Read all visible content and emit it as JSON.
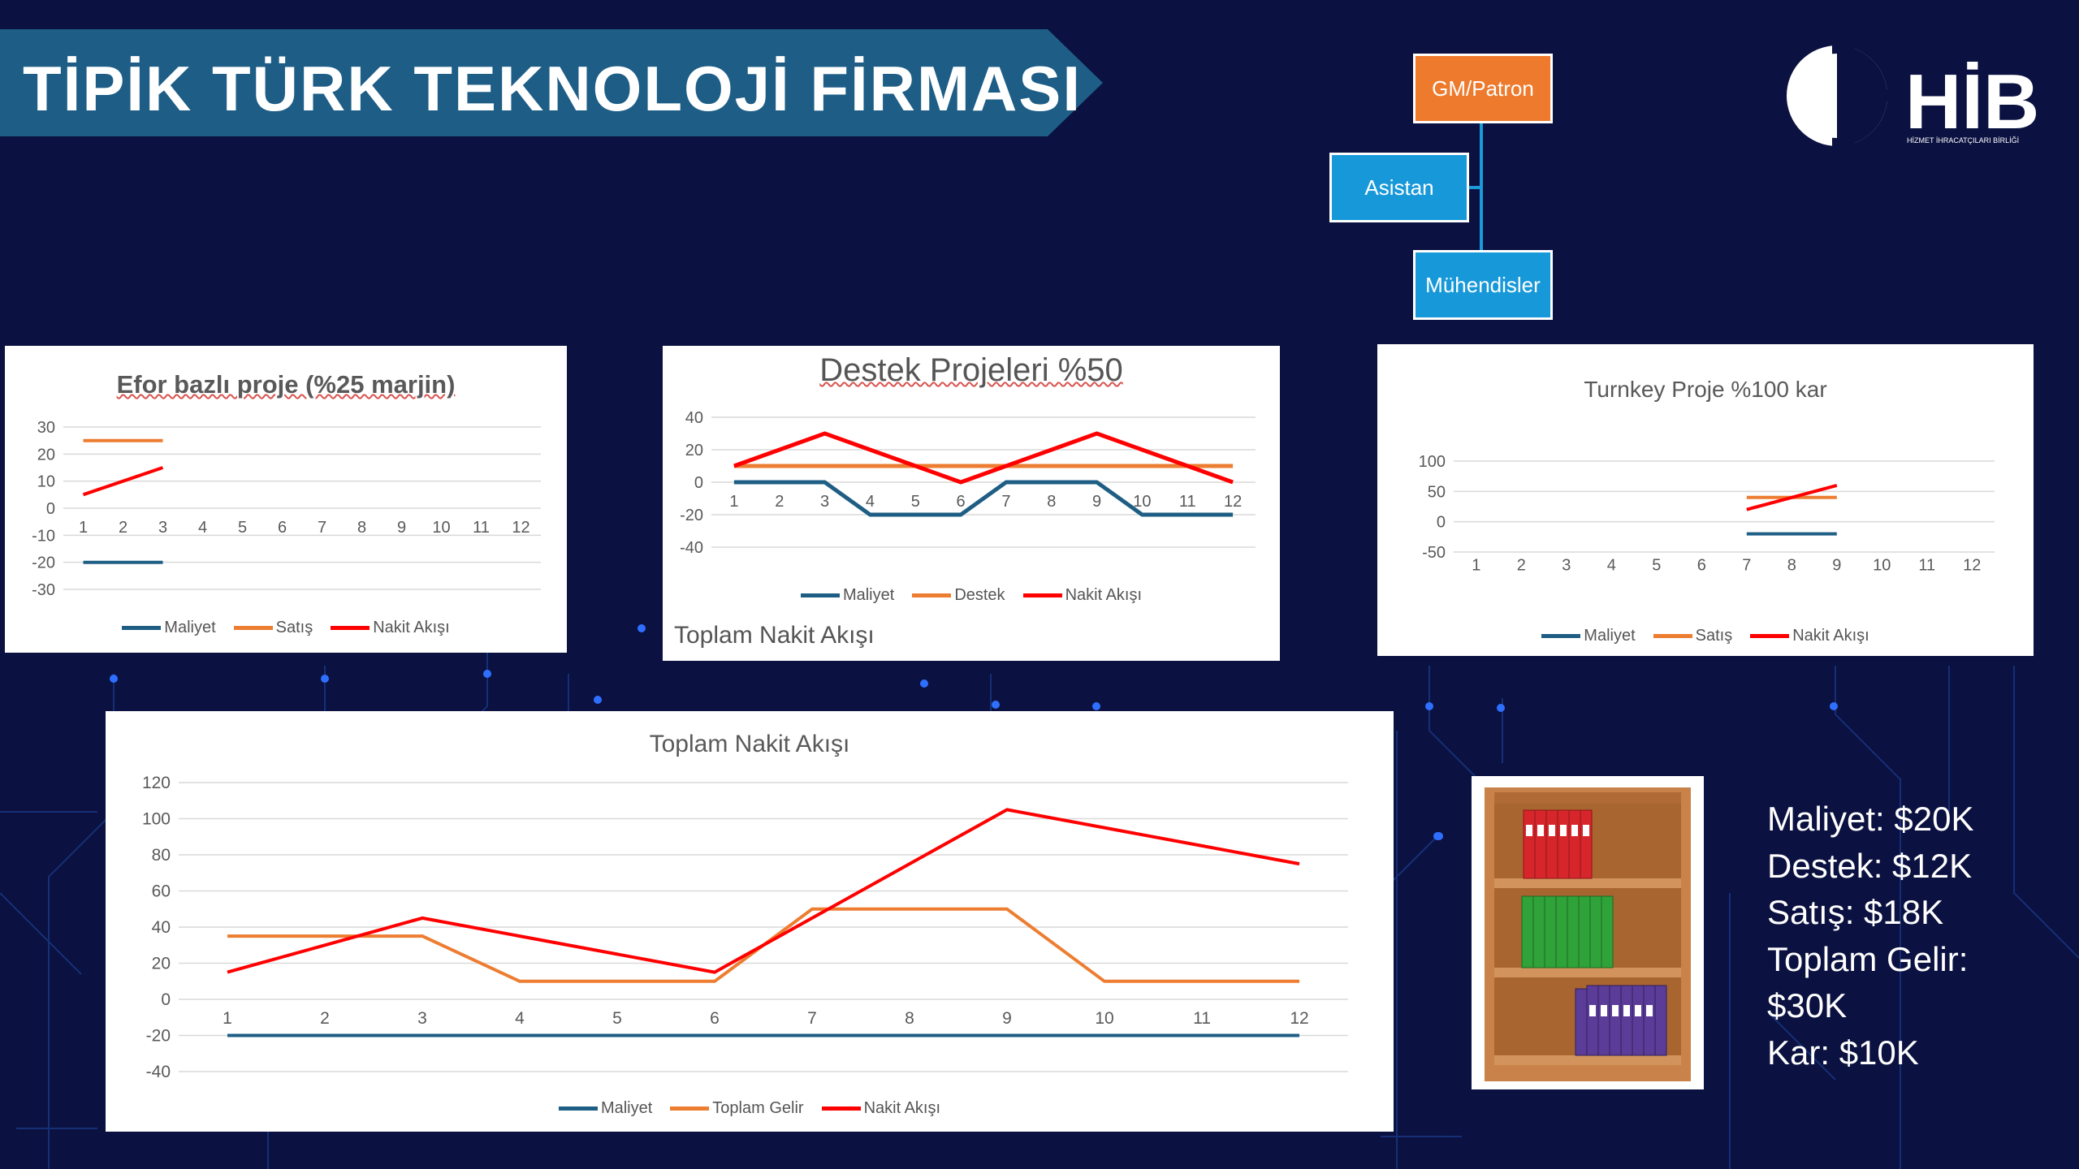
{
  "slide": {
    "title": "TİPİK TÜRK TEKNOLOJİ FİRMASI",
    "colors": {
      "background": "#0b1140",
      "banner": "#1d5d86",
      "org_orange": "#ee7a2d",
      "org_blue": "#1798d8"
    }
  },
  "org_chart": {
    "top": "GM/Patron",
    "assistant": "Asistan",
    "staff": "Mühendisler"
  },
  "logo": {
    "text": "HİB",
    "subtext": "HİZMET İHRACATÇILARI BİRLİĞİ"
  },
  "facts": {
    "lines": [
      "Maliyet: $20K",
      "Destek: $12K",
      "Satış: $18K",
      "Toplam Gelir:",
      "$30K",
      "Kar: $10K"
    ]
  },
  "image": {
    "icon": "bookshelf-with-binders-icon"
  },
  "chart_data": [
    {
      "type": "line",
      "title": "Efor bazlı proje (%25 marjin)",
      "categories": [
        "1",
        "2",
        "3",
        "4",
        "5",
        "6",
        "7",
        "8",
        "9",
        "10",
        "11",
        "12"
      ],
      "ylim": [
        -30,
        30
      ],
      "yticks": [
        30,
        20,
        10,
        0,
        -10,
        -20,
        -30
      ],
      "series": [
        {
          "name": "Maliyet",
          "color": "#1f5e84",
          "values": [
            -20,
            -20,
            -20,
            null,
            null,
            null,
            null,
            null,
            null,
            null,
            null,
            null
          ]
        },
        {
          "name": "Satış",
          "color": "#ed7d31",
          "values": [
            25,
            25,
            25,
            null,
            null,
            null,
            null,
            null,
            null,
            null,
            null,
            null
          ]
        },
        {
          "name": "Nakit Akışı",
          "color": "#ff0000",
          "values": [
            5,
            10,
            15,
            null,
            null,
            null,
            null,
            null,
            null,
            null,
            null,
            null
          ]
        }
      ]
    },
    {
      "type": "line",
      "title": "Destek Projeleri %50",
      "caption": "Toplam Nakit Akışı",
      "categories": [
        "1",
        "2",
        "3",
        "4",
        "5",
        "6",
        "7",
        "8",
        "9",
        "10",
        "11",
        "12"
      ],
      "ylim": [
        -40,
        40
      ],
      "yticks": [
        40,
        20,
        0,
        -20,
        -40
      ],
      "series": [
        {
          "name": "Maliyet",
          "color": "#1f5e84",
          "values": [
            0,
            0,
            0,
            -20,
            -20,
            -20,
            0,
            0,
            0,
            -20,
            -20,
            -20
          ]
        },
        {
          "name": "Destek",
          "color": "#ed7d31",
          "values": [
            10,
            10,
            10,
            10,
            10,
            10,
            10,
            10,
            10,
            10,
            10,
            10
          ]
        },
        {
          "name": "Nakit Akışı",
          "color": "#ff0000",
          "values": [
            10,
            20,
            30,
            20,
            10,
            0,
            10,
            20,
            30,
            20,
            10,
            0
          ]
        }
      ]
    },
    {
      "type": "line",
      "title": "Turnkey Proje %100 kar",
      "categories": [
        "1",
        "2",
        "3",
        "4",
        "5",
        "6",
        "7",
        "8",
        "9",
        "10",
        "11",
        "12"
      ],
      "ylim": [
        -50,
        100
      ],
      "yticks": [
        100,
        50,
        0,
        -50
      ],
      "series": [
        {
          "name": "Maliyet",
          "color": "#1f5e84",
          "values": [
            null,
            null,
            null,
            null,
            null,
            null,
            -20,
            -20,
            -20,
            null,
            null,
            null
          ]
        },
        {
          "name": "Satış",
          "color": "#ed7d31",
          "values": [
            null,
            null,
            null,
            null,
            null,
            null,
            40,
            40,
            40,
            null,
            null,
            null
          ]
        },
        {
          "name": "Nakit Akışı",
          "color": "#ff0000",
          "values": [
            null,
            null,
            null,
            null,
            null,
            null,
            20,
            40,
            60,
            null,
            null,
            null
          ]
        }
      ]
    },
    {
      "type": "line",
      "title": "Toplam Nakit Akışı",
      "categories": [
        "1",
        "2",
        "3",
        "4",
        "5",
        "6",
        "7",
        "8",
        "9",
        "10",
        "11",
        "12"
      ],
      "ylim": [
        -40,
        120
      ],
      "yticks": [
        120,
        100,
        80,
        60,
        40,
        20,
        0,
        -20,
        -40
      ],
      "series": [
        {
          "name": "Maliyet",
          "color": "#1f5e84",
          "values": [
            -20,
            -20,
            -20,
            -20,
            -20,
            -20,
            -20,
            -20,
            -20,
            -20,
            -20,
            -20
          ]
        },
        {
          "name": "Toplam Gelir",
          "color": "#ed7d31",
          "values": [
            35,
            35,
            35,
            10,
            10,
            10,
            50,
            50,
            50,
            10,
            10,
            10
          ]
        },
        {
          "name": "Nakit Akışı",
          "color": "#ff0000",
          "values": [
            15,
            30,
            45,
            35,
            25,
            15,
            45,
            75,
            105,
            95,
            85,
            75
          ]
        }
      ]
    }
  ]
}
